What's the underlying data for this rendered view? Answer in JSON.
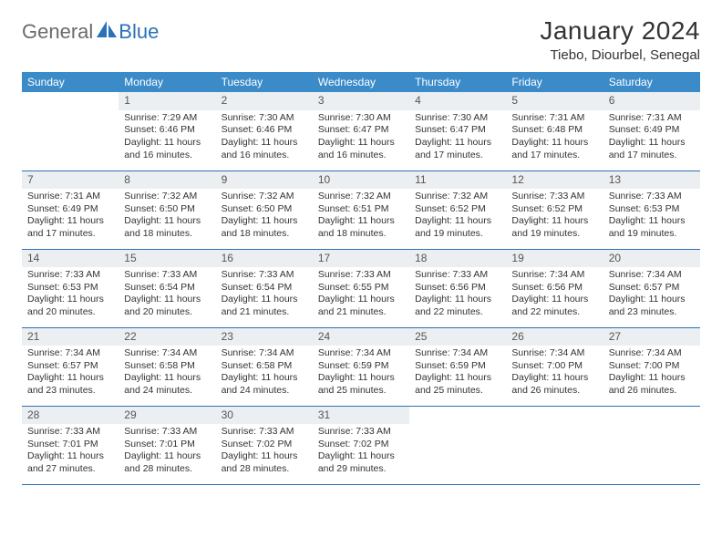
{
  "logo": {
    "general": "General",
    "blue": "Blue"
  },
  "title": "January 2024",
  "location": "Tiebo, Diourbel, Senegal",
  "colors": {
    "header_bg": "#3b8bc9",
    "header_text": "#ffffff",
    "daynum_bg": "#eceff1",
    "rule": "#2a71b8",
    "logo_gray": "#6b6b6b",
    "logo_blue": "#2a71b8"
  },
  "day_headers": [
    "Sunday",
    "Monday",
    "Tuesday",
    "Wednesday",
    "Thursday",
    "Friday",
    "Saturday"
  ],
  "weeks": [
    [
      null,
      {
        "n": 1,
        "sr": "7:29 AM",
        "ss": "6:46 PM",
        "dl": "11 hours and 16 minutes."
      },
      {
        "n": 2,
        "sr": "7:30 AM",
        "ss": "6:46 PM",
        "dl": "11 hours and 16 minutes."
      },
      {
        "n": 3,
        "sr": "7:30 AM",
        "ss": "6:47 PM",
        "dl": "11 hours and 16 minutes."
      },
      {
        "n": 4,
        "sr": "7:30 AM",
        "ss": "6:47 PM",
        "dl": "11 hours and 17 minutes."
      },
      {
        "n": 5,
        "sr": "7:31 AM",
        "ss": "6:48 PM",
        "dl": "11 hours and 17 minutes."
      },
      {
        "n": 6,
        "sr": "7:31 AM",
        "ss": "6:49 PM",
        "dl": "11 hours and 17 minutes."
      }
    ],
    [
      {
        "n": 7,
        "sr": "7:31 AM",
        "ss": "6:49 PM",
        "dl": "11 hours and 17 minutes."
      },
      {
        "n": 8,
        "sr": "7:32 AM",
        "ss": "6:50 PM",
        "dl": "11 hours and 18 minutes."
      },
      {
        "n": 9,
        "sr": "7:32 AM",
        "ss": "6:50 PM",
        "dl": "11 hours and 18 minutes."
      },
      {
        "n": 10,
        "sr": "7:32 AM",
        "ss": "6:51 PM",
        "dl": "11 hours and 18 minutes."
      },
      {
        "n": 11,
        "sr": "7:32 AM",
        "ss": "6:52 PM",
        "dl": "11 hours and 19 minutes."
      },
      {
        "n": 12,
        "sr": "7:33 AM",
        "ss": "6:52 PM",
        "dl": "11 hours and 19 minutes."
      },
      {
        "n": 13,
        "sr": "7:33 AM",
        "ss": "6:53 PM",
        "dl": "11 hours and 19 minutes."
      }
    ],
    [
      {
        "n": 14,
        "sr": "7:33 AM",
        "ss": "6:53 PM",
        "dl": "11 hours and 20 minutes."
      },
      {
        "n": 15,
        "sr": "7:33 AM",
        "ss": "6:54 PM",
        "dl": "11 hours and 20 minutes."
      },
      {
        "n": 16,
        "sr": "7:33 AM",
        "ss": "6:54 PM",
        "dl": "11 hours and 21 minutes."
      },
      {
        "n": 17,
        "sr": "7:33 AM",
        "ss": "6:55 PM",
        "dl": "11 hours and 21 minutes."
      },
      {
        "n": 18,
        "sr": "7:33 AM",
        "ss": "6:56 PM",
        "dl": "11 hours and 22 minutes."
      },
      {
        "n": 19,
        "sr": "7:34 AM",
        "ss": "6:56 PM",
        "dl": "11 hours and 22 minutes."
      },
      {
        "n": 20,
        "sr": "7:34 AM",
        "ss": "6:57 PM",
        "dl": "11 hours and 23 minutes."
      }
    ],
    [
      {
        "n": 21,
        "sr": "7:34 AM",
        "ss": "6:57 PM",
        "dl": "11 hours and 23 minutes."
      },
      {
        "n": 22,
        "sr": "7:34 AM",
        "ss": "6:58 PM",
        "dl": "11 hours and 24 minutes."
      },
      {
        "n": 23,
        "sr": "7:34 AM",
        "ss": "6:58 PM",
        "dl": "11 hours and 24 minutes."
      },
      {
        "n": 24,
        "sr": "7:34 AM",
        "ss": "6:59 PM",
        "dl": "11 hours and 25 minutes."
      },
      {
        "n": 25,
        "sr": "7:34 AM",
        "ss": "6:59 PM",
        "dl": "11 hours and 25 minutes."
      },
      {
        "n": 26,
        "sr": "7:34 AM",
        "ss": "7:00 PM",
        "dl": "11 hours and 26 minutes."
      },
      {
        "n": 27,
        "sr": "7:34 AM",
        "ss": "7:00 PM",
        "dl": "11 hours and 26 minutes."
      }
    ],
    [
      {
        "n": 28,
        "sr": "7:33 AM",
        "ss": "7:01 PM",
        "dl": "11 hours and 27 minutes."
      },
      {
        "n": 29,
        "sr": "7:33 AM",
        "ss": "7:01 PM",
        "dl": "11 hours and 28 minutes."
      },
      {
        "n": 30,
        "sr": "7:33 AM",
        "ss": "7:02 PM",
        "dl": "11 hours and 28 minutes."
      },
      {
        "n": 31,
        "sr": "7:33 AM",
        "ss": "7:02 PM",
        "dl": "11 hours and 29 minutes."
      },
      null,
      null,
      null
    ]
  ],
  "labels": {
    "sunrise": "Sunrise:",
    "sunset": "Sunset:",
    "daylight": "Daylight:"
  }
}
